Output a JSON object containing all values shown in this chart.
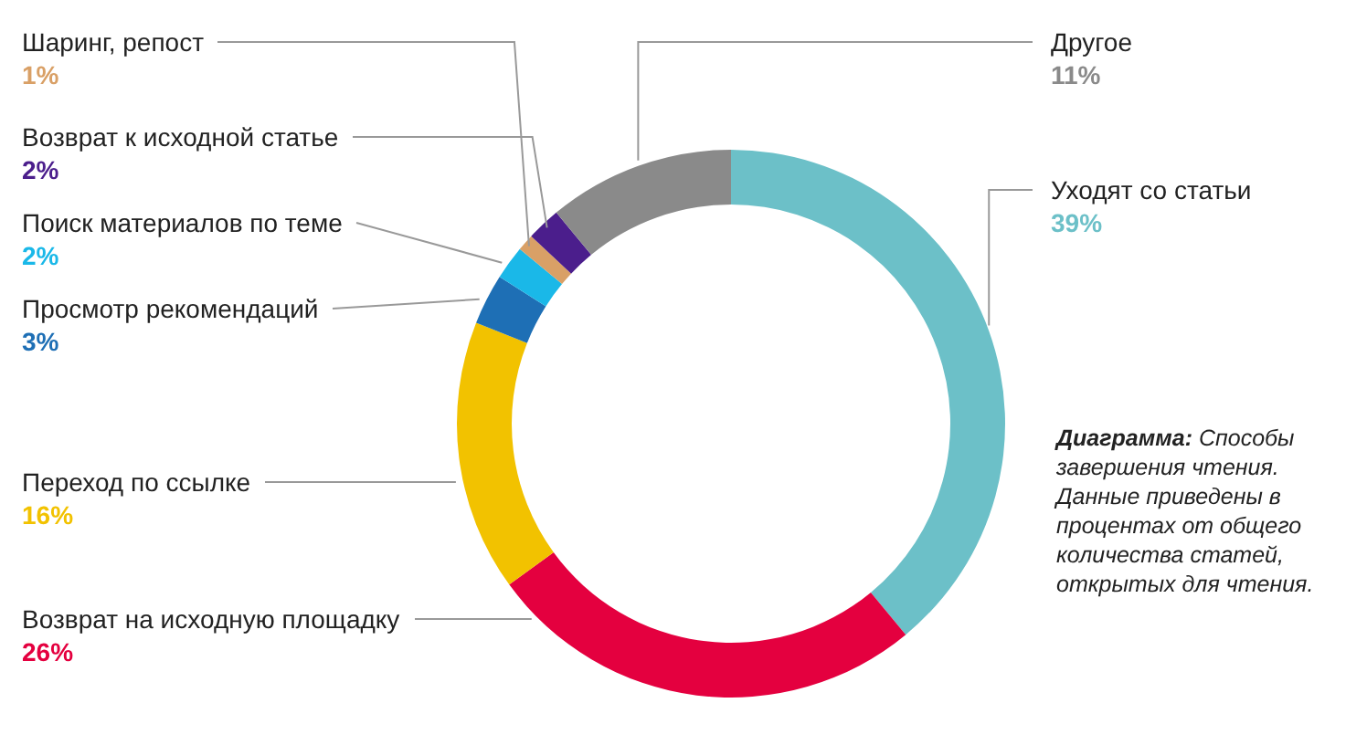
{
  "chart_data": {
    "type": "donut",
    "categories": [
      "Уходят со статьи",
      "Возврат на исходную площадку",
      "Переход по ссылке",
      "Просмотр рекомендаций",
      "Поиск материалов по теме",
      "Шаринг, репост",
      "Возврат к исходной статье",
      "Другое"
    ],
    "values": [
      39,
      26,
      16,
      3,
      2,
      1,
      2,
      11
    ],
    "value_labels": [
      "39%",
      "26%",
      "16%",
      "3%",
      "2%",
      "1%",
      "2%",
      "11%"
    ],
    "colors": [
      "#6cc0c8",
      "#e4003f",
      "#f2c200",
      "#1e6fb5",
      "#1ab8e8",
      "#d9a066",
      "#4b1e8c",
      "#8a8a8a"
    ],
    "annotations": [
      "Диаграмма: Способы завершения чтения. Данные приведены в процентах от общего количества статей, открытых для чтения."
    ]
  }
}
